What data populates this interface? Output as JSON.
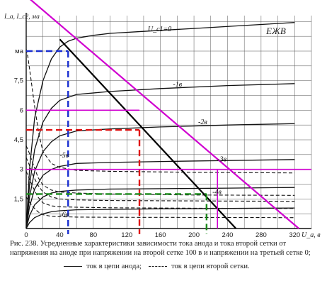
{
  "chart_data": {
    "type": "line",
    "title": "",
    "xlabel": "U_a, в",
    "ylabel": "I_a, I_c2, ма",
    "xlim": [
      0,
      340
    ],
    "ylim": [
      0,
      10.8
    ],
    "x_ticks": [
      0,
      40,
      80,
      120,
      160,
      200,
      240,
      280,
      320
    ],
    "x_tick_labels": [
      "0",
      "40",
      "80",
      "120",
      "160",
      "200",
      "240",
      "280",
      "320"
    ],
    "y_ticks": [
      1.5,
      3,
      4.5,
      6,
      7.5,
      9
    ],
    "y_tick_labels": [
      "1,5",
      "3",
      "4,5",
      "6",
      "7,5",
      "ма"
    ],
    "grid": true,
    "legend": "bottom",
    "stamp": "ЕЖВ",
    "curve_labels": [
      {
        "text": "U_c1=0",
        "x": 145,
        "y": 10.0
      },
      {
        "text": "-1в",
        "x": 175,
        "y": 7.2
      },
      {
        "text": "-2в",
        "x": 205,
        "y": 5.3
      },
      {
        "text": "-3в",
        "x": 228,
        "y": 3.4
      },
      {
        "text": "-4в",
        "x": 222,
        "y": 1.75
      },
      {
        "text": "-5в",
        "x": 40,
        "y": 3.6
      },
      {
        "text": "-6в",
        "x": 40,
        "y": 0.6
      }
    ],
    "anode_series": [
      {
        "bias": 0,
        "x": [
          0,
          4,
          10,
          20,
          30,
          40,
          50,
          60,
          80,
          100,
          140,
          200,
          260,
          320
        ],
        "y": [
          0,
          3.0,
          5.6,
          7.5,
          8.6,
          9.2,
          9.5,
          9.65,
          9.8,
          9.9,
          10.0,
          10.15,
          10.3,
          10.45
        ]
      },
      {
        "bias": -1,
        "x": [
          0,
          4,
          10,
          20,
          30,
          40,
          60,
          100,
          160,
          240,
          320
        ],
        "y": [
          0,
          2.2,
          4.0,
          5.4,
          6.1,
          6.5,
          6.8,
          6.95,
          7.1,
          7.25,
          7.35
        ]
      },
      {
        "bias": -2,
        "x": [
          0,
          4,
          10,
          20,
          30,
          40,
          60,
          100,
          160,
          240,
          320
        ],
        "y": [
          0,
          1.6,
          2.9,
          3.9,
          4.4,
          4.7,
          4.95,
          5.05,
          5.15,
          5.25,
          5.32
        ]
      },
      {
        "bias": -3,
        "x": [
          0,
          4,
          10,
          20,
          30,
          40,
          60,
          100,
          160,
          240,
          320
        ],
        "y": [
          0,
          1.1,
          2.0,
          2.7,
          3.0,
          3.15,
          3.3,
          3.35,
          3.4,
          3.45,
          3.5
        ]
      },
      {
        "bias": -4,
        "x": [
          0,
          4,
          10,
          20,
          30,
          40,
          60,
          100,
          160,
          240,
          320
        ],
        "y": [
          0,
          0.65,
          1.2,
          1.6,
          1.8,
          1.88,
          1.95,
          2.0,
          2.02,
          2.05,
          2.08
        ]
      },
      {
        "bias": -5,
        "x": [
          0,
          4,
          10,
          20,
          30,
          40,
          60,
          100,
          160,
          240,
          320
        ],
        "y": [
          0,
          0.3,
          0.55,
          0.75,
          0.85,
          0.9,
          0.95,
          0.97,
          1.0,
          1.02,
          1.04
        ]
      }
    ],
    "screen_grid_series": [
      {
        "bias": 0,
        "x": [
          0,
          2,
          5,
          10,
          15,
          20,
          30,
          40,
          60,
          100,
          200,
          320
        ],
        "y": [
          9.1,
          8.7,
          7.8,
          6.2,
          4.8,
          3.9,
          3.3,
          3.1,
          2.95,
          2.9,
          2.85,
          2.82
        ]
      },
      {
        "bias": -2,
        "x": [
          0,
          3,
          8,
          14,
          20,
          30,
          40,
          60,
          100,
          200,
          320
        ],
        "y": [
          4.2,
          3.9,
          3.3,
          2.6,
          2.2,
          1.95,
          1.85,
          1.8,
          1.75,
          1.7,
          1.68
        ]
      },
      {
        "bias": -3,
        "x": [
          0,
          3,
          8,
          14,
          20,
          30,
          40,
          60,
          100,
          200,
          320
        ],
        "y": [
          3.6,
          3.3,
          2.7,
          2.2,
          1.85,
          1.6,
          1.5,
          1.45,
          1.42,
          1.4,
          1.38
        ]
      },
      {
        "bias": -4,
        "x": [
          0,
          3,
          8,
          14,
          20,
          30,
          40,
          60,
          100,
          200,
          320
        ],
        "y": [
          2.9,
          2.6,
          2.1,
          1.6,
          1.3,
          1.15,
          1.1,
          1.08,
          1.05,
          1.03,
          1.02
        ]
      },
      {
        "bias": -6,
        "x": [
          0,
          3,
          8,
          14,
          20,
          30,
          40,
          60,
          100,
          200,
          320
        ],
        "y": [
          1.6,
          1.4,
          1.1,
          0.85,
          0.7,
          0.62,
          0.6,
          0.58,
          0.57,
          0.56,
          0.55
        ]
      }
    ],
    "load_lines": [
      {
        "name": "black",
        "color": "#000000",
        "x": [
          40,
          250
        ],
        "y": [
          9.6,
          0
        ]
      },
      {
        "name": "magenta",
        "color": "#d000d0",
        "x": [
          0,
          325
        ],
        "y": [
          11.8,
          0
        ]
      }
    ],
    "overlay_h_lines": [
      {
        "color": "#d000d0",
        "y": 6.0,
        "x": [
          0,
          135
        ]
      },
      {
        "color": "#d000d0",
        "y": 3.0,
        "x": [
          0,
          228
        ]
      },
      {
        "color": "#d000d0",
        "y": 3.0,
        "x": [
          228,
          340
        ]
      }
    ],
    "overlay_v_lines": [
      {
        "color": "#d000d0",
        "x": 228,
        "y": [
          0,
          3.0
        ]
      }
    ],
    "operating_points": [
      {
        "color": "#1a2fd0",
        "x": 50,
        "y": 9.0
      },
      {
        "color": "#e01010",
        "x": 135,
        "y": 5.0
      },
      {
        "color": "#1a8a1a",
        "x": 215,
        "y": 1.75
      }
    ]
  },
  "caption": {
    "text": "Рис. 238. Усредненные характеристики зависимости тока анода и тока второй сетки от напряжения на аноде при напряжении на второй сетке 100 в и напряжении на третьей сетке 0;",
    "legend_solid": "ток в цепи анода;",
    "legend_dashed": "ток в цепи второй сетки."
  }
}
